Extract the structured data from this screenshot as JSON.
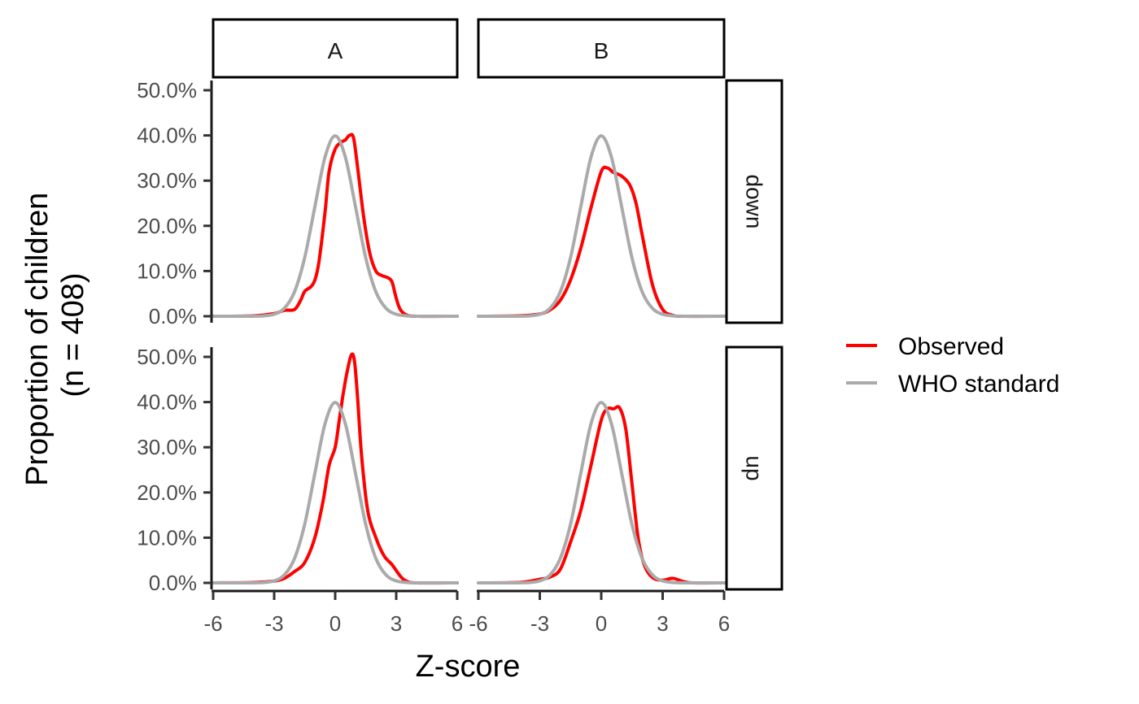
{
  "chart_data": {
    "type": "line",
    "facet_columns": [
      "A",
      "B"
    ],
    "facet_rows": [
      "down",
      "up"
    ],
    "xlabel": "Z-score",
    "ylabel_line1": "Proportion of children",
    "ylabel_line2": "(n = 408)",
    "xlim": [
      -6,
      6
    ],
    "ylim": [
      0,
      0.5
    ],
    "x_ticks": [
      -6,
      -3,
      0,
      3,
      6
    ],
    "x_tick_labels": [
      "-6",
      "-3",
      "0",
      "3",
      "6"
    ],
    "y_ticks": [
      0,
      0.1,
      0.2,
      0.3,
      0.4,
      0.5
    ],
    "y_tick_labels": [
      "0.0%",
      "10.0%",
      "20.0%",
      "30.0%",
      "40.0%",
      "50.0%"
    ],
    "legend": [
      {
        "name": "Observed",
        "color": "#ff0000"
      },
      {
        "name": "WHO standard",
        "color": "#aaaaaa"
      }
    ],
    "legend_position": "right",
    "grid": false,
    "panels": [
      {
        "column": "A",
        "row": "down",
        "series": [
          {
            "name": "Observed",
            "x": [
              -6,
              -4,
              -3,
              -2.5,
              -2,
              -1.7,
              -1.5,
              -1.2,
              -1,
              -0.8,
              -0.5,
              -0.3,
              0,
              0.3,
              0.5,
              0.7,
              0.9,
              1.1,
              1.4,
              1.7,
              2,
              2.3,
              2.6,
              2.8,
              3,
              3.2,
              3.5,
              4,
              6
            ],
            "y": [
              0,
              0.001,
              0.006,
              0.013,
              0.015,
              0.035,
              0.055,
              0.065,
              0.08,
              0.12,
              0.23,
              0.32,
              0.37,
              0.385,
              0.39,
              0.4,
              0.395,
              0.33,
              0.22,
              0.14,
              0.1,
              0.09,
              0.085,
              0.075,
              0.04,
              0.015,
              0.003,
              0,
              0
            ]
          },
          {
            "name": "WHO standard",
            "x": [
              -6,
              -4,
              -3.5,
              -3,
              -2.5,
              -2,
              -1.5,
              -1,
              -0.5,
              0,
              0.5,
              1,
              1.5,
              2,
              2.5,
              3,
              3.5,
              4,
              6
            ],
            "y": [
              0,
              0.0001,
              0.0009,
              0.0044,
              0.0175,
              0.054,
              0.1295,
              0.242,
              0.352,
              0.399,
              0.352,
              0.242,
              0.1295,
              0.054,
              0.0175,
              0.0044,
              0.0009,
              0.0001,
              0
            ]
          }
        ]
      },
      {
        "column": "B",
        "row": "down",
        "series": [
          {
            "name": "Observed",
            "x": [
              -6,
              -4,
              -3,
              -2.5,
              -2,
              -1.5,
              -1,
              -0.5,
              0,
              0.3,
              0.6,
              1,
              1.4,
              1.7,
              2,
              2.5,
              3,
              3.5,
              4,
              6
            ],
            "y": [
              0,
              0.001,
              0.005,
              0.014,
              0.035,
              0.08,
              0.15,
              0.24,
              0.32,
              0.328,
              0.318,
              0.31,
              0.29,
              0.25,
              0.18,
              0.07,
              0.015,
              0.002,
              0,
              0
            ]
          },
          {
            "name": "WHO standard",
            "x": [
              -6,
              -4,
              -3.5,
              -3,
              -2.5,
              -2,
              -1.5,
              -1,
              -0.5,
              0,
              0.5,
              1,
              1.5,
              2,
              2.5,
              3,
              3.5,
              4,
              6
            ],
            "y": [
              0,
              0.0001,
              0.0009,
              0.0044,
              0.0175,
              0.054,
              0.1295,
              0.242,
              0.352,
              0.399,
              0.352,
              0.242,
              0.1295,
              0.054,
              0.0175,
              0.0044,
              0.0009,
              0.0001,
              0
            ]
          }
        ]
      },
      {
        "column": "A",
        "row": "up",
        "series": [
          {
            "name": "Observed",
            "x": [
              -6,
              -4,
              -3,
              -2.5,
              -2,
              -1.5,
              -1,
              -0.6,
              -0.3,
              0,
              0.2,
              0.4,
              0.6,
              0.8,
              0.95,
              1.1,
              1.3,
              1.6,
              2,
              2.4,
              2.8,
              3.2,
              3.5,
              4,
              6
            ],
            "y": [
              0,
              0.001,
              0.004,
              0.01,
              0.025,
              0.045,
              0.1,
              0.18,
              0.26,
              0.3,
              0.36,
              0.42,
              0.47,
              0.505,
              0.49,
              0.41,
              0.28,
              0.16,
              0.1,
              0.06,
              0.04,
              0.015,
              0.004,
              0,
              0
            ]
          },
          {
            "name": "WHO standard",
            "x": [
              -6,
              -4,
              -3.5,
              -3,
              -2.5,
              -2,
              -1.5,
              -1,
              -0.5,
              0,
              0.5,
              1,
              1.5,
              2,
              2.5,
              3,
              3.5,
              4,
              6
            ],
            "y": [
              0,
              0.0001,
              0.0009,
              0.0044,
              0.0175,
              0.054,
              0.1295,
              0.242,
              0.352,
              0.399,
              0.352,
              0.242,
              0.1295,
              0.054,
              0.0175,
              0.0044,
              0.0009,
              0.0001,
              0
            ]
          }
        ]
      },
      {
        "column": "B",
        "row": "up",
        "series": [
          {
            "name": "Observed",
            "x": [
              -6,
              -4,
              -3,
              -2.5,
              -2,
              -1.5,
              -1,
              -0.5,
              0,
              0.3,
              0.6,
              0.9,
              1.2,
              1.5,
              1.8,
              2.1,
              2.5,
              3,
              3.5,
              4,
              4.5,
              6
            ],
            "y": [
              0,
              0.001,
              0.008,
              0.013,
              0.03,
              0.09,
              0.16,
              0.26,
              0.36,
              0.385,
              0.385,
              0.387,
              0.34,
              0.22,
              0.1,
              0.04,
              0.012,
              0.006,
              0.01,
              0.003,
              0,
              0
            ]
          },
          {
            "name": "WHO standard",
            "x": [
              -6,
              -4,
              -3.5,
              -3,
              -2.5,
              -2,
              -1.5,
              -1,
              -0.5,
              0,
              0.5,
              1,
              1.5,
              2,
              2.5,
              3,
              3.5,
              4,
              6
            ],
            "y": [
              0,
              0.0001,
              0.0009,
              0.0044,
              0.0175,
              0.054,
              0.1295,
              0.242,
              0.352,
              0.399,
              0.352,
              0.242,
              0.1295,
              0.054,
              0.0175,
              0.0044,
              0.0009,
              0.0001,
              0
            ]
          }
        ]
      }
    ]
  }
}
